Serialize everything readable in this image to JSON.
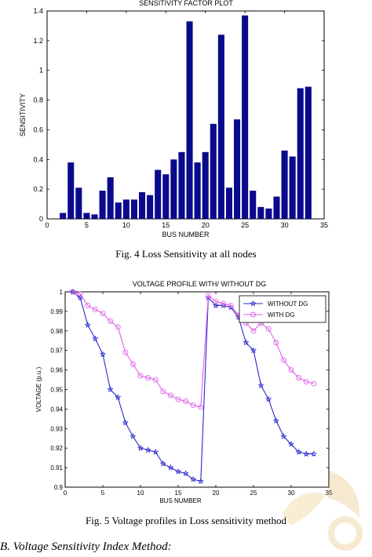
{
  "fig4": {
    "caption": "Fig. 4 Loss Sensitivity at all nodes"
  },
  "fig5": {
    "caption": "Fig. 5 Voltage profiles in Loss sensitivity method"
  },
  "section_heading": "B. Voltage Sensitivity Index Method:",
  "chart_data": [
    {
      "type": "bar",
      "title": "SENSITIVITY FACTOR PLOT",
      "xlabel": "BUS NUMBER",
      "ylabel": "SENSITIVITY",
      "xlim": [
        0,
        35
      ],
      "ylim": [
        0,
        1.4
      ],
      "xticks": [
        "0",
        "5",
        "10",
        "15",
        "20",
        "25",
        "30",
        "35"
      ],
      "yticks": [
        "0",
        "0.2",
        "0.4",
        "0.6",
        "0.8",
        "1",
        "1.2",
        "1.4"
      ],
      "bar_color": "#0a0a8c",
      "categories": [
        2,
        3,
        4,
        5,
        6,
        7,
        8,
        9,
        10,
        11,
        12,
        13,
        14,
        15,
        16,
        17,
        18,
        19,
        20,
        21,
        22,
        23,
        24,
        25,
        26,
        27,
        28,
        29,
        30,
        31,
        32,
        33
      ],
      "values": [
        0.04,
        0.38,
        0.21,
        0.04,
        0.03,
        0.19,
        0.28,
        0.11,
        0.13,
        0.13,
        0.18,
        0.16,
        0.33,
        0.3,
        0.4,
        0.45,
        1.33,
        0.38,
        0.45,
        0.64,
        1.24,
        0.21,
        0.67,
        1.37,
        0.19,
        0.08,
        0.07,
        0.15,
        0.46,
        0.42,
        0.88,
        0.89
      ]
    },
    {
      "type": "line",
      "title": "VOLTAGE PROFILE WITH/ WITHOUT DG",
      "xlabel": "BUS NUMBER",
      "ylabel": "VOLTAGE (p.u.)",
      "xlim": [
        0,
        35
      ],
      "ylim": [
        0.9,
        1.0
      ],
      "xticks": [
        "0",
        "5",
        "10",
        "15",
        "20",
        "25",
        "30",
        "35"
      ],
      "yticks": [
        "0.9",
        "0.91",
        "0.92",
        "0.93",
        "0.94",
        "0.95",
        "0.96",
        "0.97",
        "0.98",
        "0.99",
        "1"
      ],
      "legend_position": "top-right",
      "x": [
        1,
        2,
        3,
        4,
        5,
        6,
        7,
        8,
        9,
        10,
        11,
        12,
        13,
        14,
        15,
        16,
        17,
        18,
        19,
        20,
        21,
        22,
        23,
        24,
        25,
        26,
        27,
        28,
        29,
        30,
        31,
        32,
        33
      ],
      "series": [
        {
          "name": "WITHOUT DG",
          "color": "#2a2ad0",
          "marker": "star",
          "values": [
            1.0,
            0.997,
            0.983,
            0.976,
            0.968,
            0.95,
            0.946,
            0.933,
            0.926,
            0.92,
            0.919,
            0.918,
            0.912,
            0.91,
            0.908,
            0.907,
            0.904,
            0.903,
            0.997,
            0.993,
            0.993,
            0.992,
            0.987,
            0.974,
            0.97,
            0.952,
            0.945,
            0.934,
            0.926,
            0.922,
            0.918,
            0.917,
            0.917
          ]
        },
        {
          "name": "WITH DG",
          "color": "#e060e8",
          "marker": "circle",
          "values": [
            1.0,
            0.999,
            0.993,
            0.991,
            0.989,
            0.985,
            0.982,
            0.969,
            0.963,
            0.957,
            0.956,
            0.955,
            0.949,
            0.947,
            0.945,
            0.944,
            0.942,
            0.941,
            0.998,
            0.995,
            0.994,
            0.993,
            0.988,
            0.984,
            0.98,
            0.984,
            0.981,
            0.974,
            0.965,
            0.96,
            0.956,
            0.954,
            0.953
          ]
        }
      ]
    }
  ]
}
